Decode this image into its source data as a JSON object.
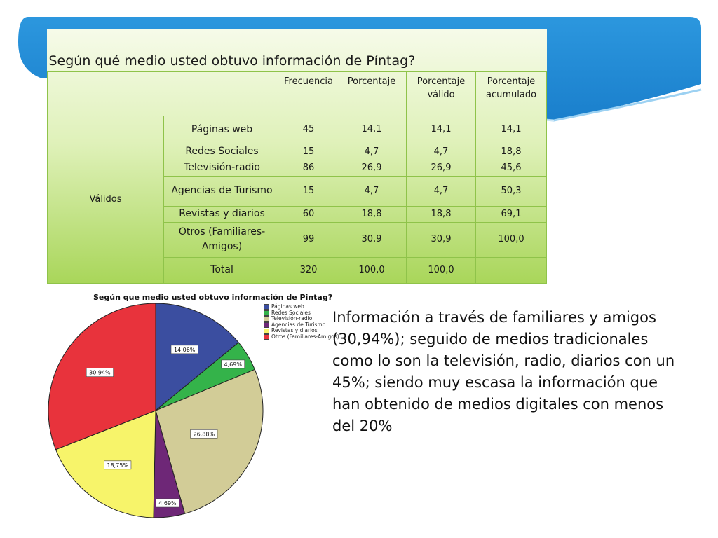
{
  "table": {
    "title": "Según qué medio usted obtuvo información de Píntag?",
    "headers": [
      "Frecuencia",
      "Porcentaje",
      "Porcentaje válido",
      "Porcentaje acumulado"
    ],
    "group_label": "Válidos",
    "rows": [
      {
        "label": "Páginas web",
        "freq": "45",
        "pct": "14,1",
        "valid": "14,1",
        "cum": "14,1"
      },
      {
        "label": "Redes Sociales",
        "freq": "15",
        "pct": "4,7",
        "valid": "4,7",
        "cum": "18,8"
      },
      {
        "label": "Televisión-radio",
        "freq": "86",
        "pct": "26,9",
        "valid": "26,9",
        "cum": "45,6"
      },
      {
        "label": "Agencias de Turismo",
        "freq": "15",
        "pct": "4,7",
        "valid": "4,7",
        "cum": "50,3"
      },
      {
        "label": "Revistas y diarios",
        "freq": "60",
        "pct": "18,8",
        "valid": "18,8",
        "cum": "69,1"
      },
      {
        "label": "Otros (Familiares-Amigos)",
        "freq": "99",
        "pct": "30,9",
        "valid": "30,9",
        "cum": "100,0"
      },
      {
        "label": "Total",
        "freq": "320",
        "pct": "100,0",
        "valid": "100,0",
        "cum": ""
      }
    ]
  },
  "chart_data": {
    "type": "pie",
    "title": "Según que medio usted obtuvo información de Pintag?",
    "legend_position": "right",
    "categories": [
      "Páginas web",
      "Redes Sociales",
      "Televisión-radio",
      "Agencias de Turismo",
      "Revistas y diarios",
      "Otros (Familiares-Amigos)"
    ],
    "values": [
      14.06,
      4.69,
      26.88,
      4.69,
      18.75,
      30.94
    ],
    "labels": [
      "14,06%",
      "4,69%",
      "26,88%",
      "4,69%",
      "18,75%",
      "30,94%"
    ],
    "colors": [
      "#3b4ea0",
      "#34b34a",
      "#d2cc97",
      "#6e2777",
      "#f7f46a",
      "#e8333c"
    ]
  },
  "insight_text": "Información  a través de familiares y amigos (30,94%); seguido de medios tradicionales como lo son la televisión, radio, diarios con un 45%; siendo muy escasa la información que han obtenido de medios digitales con menos del 20%",
  "colors": {
    "banner": "#1f8fd6",
    "table_green": "#a9d65a"
  }
}
